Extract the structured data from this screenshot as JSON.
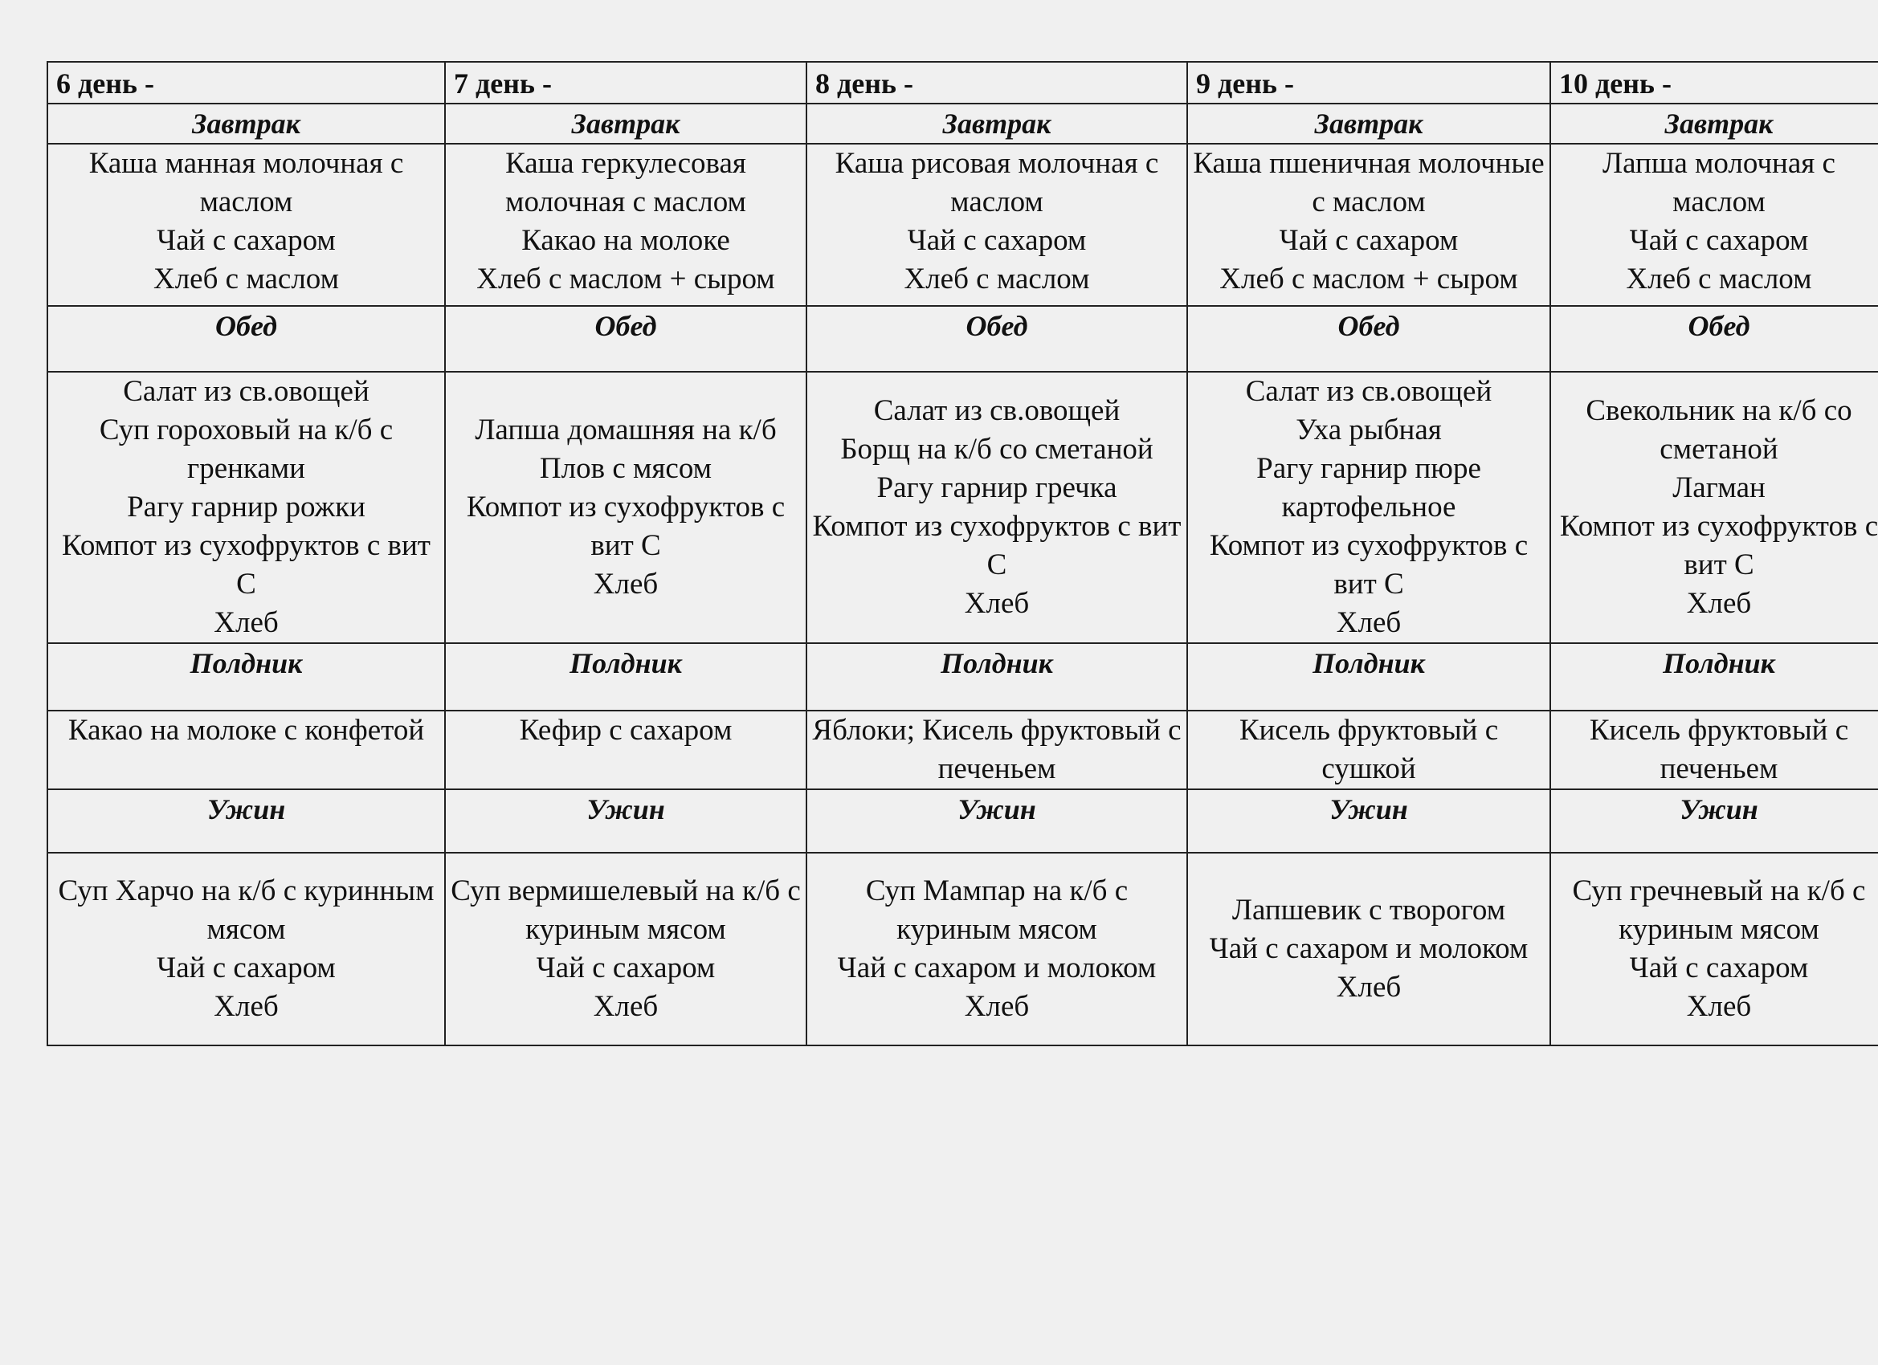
{
  "days": [
    {
      "title": "6 день -",
      "breakfast": "Каша манная молочная с маслом\nЧай с сахаром\nХлеб с маслом",
      "lunch": "Салат из св.овощей\nСуп гороховый на к/б с гренками\nРагу гарнир рожки\nКомпот из сухофруктов с вит С\nХлеб",
      "snack": "Какао на молоке с конфетой",
      "dinner": "Суп Харчо на к/б с куринным мясом\nЧай с сахаром\nХлеб"
    },
    {
      "title": "7 день -",
      "breakfast": "Каша геркулесовая молочная с маслом\nКакао на молоке\nХлеб с маслом + сыром",
      "lunch": "Лапша домашняя на к/б\nПлов с мясом\nКомпот  из сухофруктов с вит С\nХлеб",
      "snack": "Кефир с сахаром",
      "dinner": "Суп вермишелевый на к/б с куриным мясом\nЧай с сахаром\nХлеб"
    },
    {
      "title": "8 день -",
      "breakfast": "Каша рисовая молочная с маслом\nЧай с сахаром\nХлеб  с маслом",
      "lunch": "Салат из св.овощей\nБорщ на к/б со сметаной\nРагу гарнир гречка\nКомпот из сухофруктов с вит С\nХлеб",
      "snack": "Яблоки; Кисель фруктовый с печеньем",
      "dinner": "Суп Мампар на к/б с куриным мясом\nЧай с сахаром и молоком\nХлеб"
    },
    {
      "title": "9 день -",
      "breakfast": "Каша пшеничная молочные с маслом\nЧай с сахаром\nХлеб с маслом + сыром",
      "lunch": "Салат из св.овощей\nУха рыбная\nРагу гарнир пюре картофельное\nКомпот из сухофруктов с вит С\nХлеб",
      "snack": "Кисель фруктовый с сушкой",
      "dinner": "Лапшевик с творогом\nЧай с сахаром и молоком\nХлеб"
    },
    {
      "title": "10 день -",
      "breakfast": "Лапша молочная с маслом\nЧай с сахаром\nХлеб с маслом",
      "lunch": "Свекольник на к/б со сметаной\nЛагман\nКомпот из сухофруктов с вит С\nХлеб",
      "snack": "Кисель фруктовый с печеньем",
      "dinner": "Суп гречневый на к/б с куриным мясом\nЧай с сахаром\nХлеб"
    }
  ],
  "meals": {
    "breakfast": "Завтрак",
    "lunch": "Обед",
    "snack": "Полдник",
    "dinner": "Ужин"
  }
}
